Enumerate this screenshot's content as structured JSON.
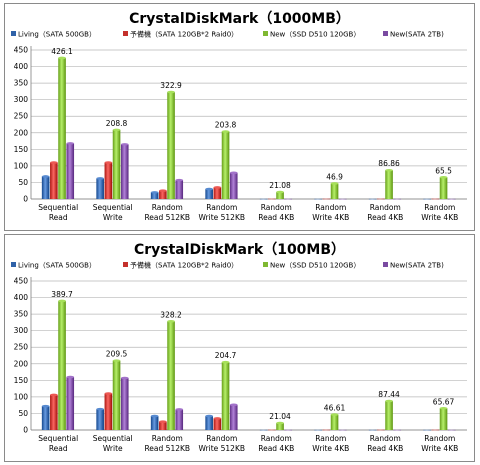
{
  "colors": {
    "Living": "#2f62a8",
    "Spare": "#c4302b",
    "New": "#7fb832",
    "NewSATA": "#7a4aa1"
  },
  "chart_data": [
    {
      "type": "bar",
      "title": "CrystalDiskMark（1000MB）",
      "categories": [
        [
          "Sequential",
          "Read"
        ],
        [
          "Sequential",
          "Write"
        ],
        [
          "Random",
          "Read 512KB"
        ],
        [
          "Random",
          "Write 512KB"
        ],
        [
          "Random",
          "Read 4KB"
        ],
        [
          "Random",
          "Write 4KB"
        ],
        [
          "Random",
          "Read 4KB"
        ],
        [
          "Random",
          "Write 4KB"
        ]
      ],
      "series": [
        {
          "name": "Living（SATA 500GB）",
          "key": "Living",
          "values": [
            68,
            62,
            20,
            30,
            0.5,
            0.5,
            0.5,
            0.5
          ]
        },
        {
          "name": "予備機（SATA 120GB*2 Raid0）",
          "key": "Spare",
          "values": [
            110,
            110,
            25,
            35,
            0.8,
            0.8,
            0.8,
            0.8
          ]
        },
        {
          "name": "New（SSD D510 120GB）",
          "key": "New",
          "values": [
            426.1,
            208.8,
            322.9,
            203.8,
            21.08,
            46.9,
            86.86,
            65.5
          ]
        },
        {
          "name": "New(SATA 2TB)",
          "key": "NewSATA",
          "values": [
            168,
            165,
            57,
            79,
            0.5,
            0.5,
            0.5,
            0.5
          ]
        }
      ],
      "data_labels": [
        "426.1",
        "208.8",
        "322.9",
        "203.8",
        "21.08",
        "46.9",
        "86.86",
        "65.5"
      ],
      "ylim": [
        0,
        450
      ],
      "yticks": [
        "0",
        "50",
        "100",
        "150",
        "200",
        "250",
        "300",
        "350",
        "400",
        "450"
      ],
      "grid": true,
      "legend": "top"
    },
    {
      "type": "bar",
      "title": "CrystalDiskMark（100MB）",
      "categories": [
        [
          "Sequential",
          "Read"
        ],
        [
          "Sequential",
          "Write"
        ],
        [
          "Random",
          "Read 512KB"
        ],
        [
          "Random",
          "Write 512KB"
        ],
        [
          "Random",
          "Read 4KB"
        ],
        [
          "Random",
          "Write 4KB"
        ],
        [
          "Random",
          "Read 4KB"
        ],
        [
          "Random",
          "Write 4KB"
        ]
      ],
      "series": [
        {
          "name": "Living（SATA 500GB）",
          "key": "Living",
          "values": [
            72,
            63,
            42,
            42,
            0.5,
            0.5,
            0.5,
            0.5
          ]
        },
        {
          "name": "予備機（SATA 120GB*2 Raid0）",
          "key": "Spare",
          "values": [
            106,
            110,
            25,
            35,
            0.8,
            0.8,
            0.8,
            0.8
          ]
        },
        {
          "name": "New（SSD D510 120GB）",
          "key": "New",
          "values": [
            389.7,
            209.5,
            328.2,
            204.7,
            21.04,
            46.61,
            87.44,
            65.67
          ]
        },
        {
          "name": "New(SATA 2TB)",
          "key": "NewSATA",
          "values": [
            160,
            157,
            62,
            76,
            0.5,
            0.5,
            0.5,
            0.5
          ]
        }
      ],
      "data_labels": [
        "389.7",
        "209.5",
        "328.2",
        "204.7",
        "21.04",
        "46.61",
        "87.44",
        "65.67"
      ],
      "ylim": [
        0,
        450
      ],
      "yticks": [
        "0",
        "50",
        "100",
        "150",
        "200",
        "250",
        "300",
        "350",
        "400",
        "450"
      ],
      "grid": true,
      "legend": "top"
    }
  ]
}
